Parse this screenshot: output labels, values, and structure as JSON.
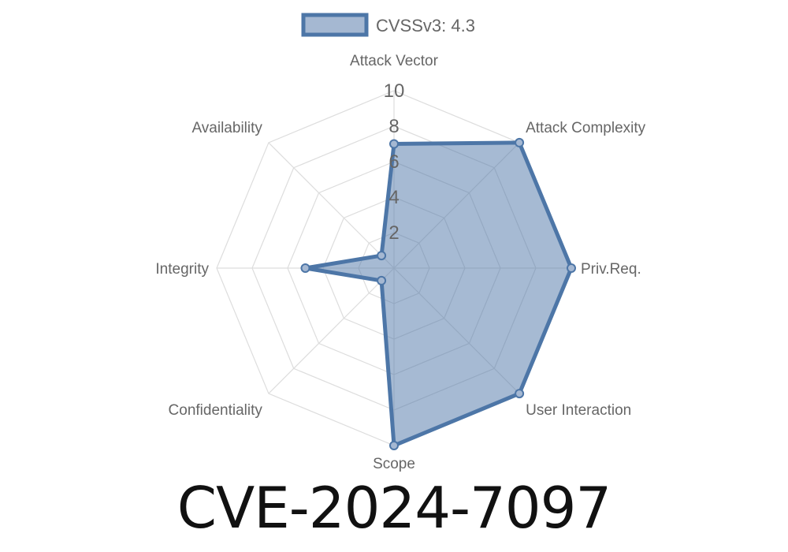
{
  "chart_data": {
    "type": "radar",
    "legend": {
      "label": "CVSSv3: 4.3",
      "placement": "top"
    },
    "axes": [
      "Attack Vector",
      "Attack Complexity",
      "Priv.Req.",
      "User Interaction",
      "Scope",
      "Confidentiality",
      "Integrity",
      "Availability"
    ],
    "series": [
      {
        "name": "CVSSv3: 4.3",
        "values": [
          7,
          10,
          10,
          10,
          10,
          1,
          5,
          1
        ]
      }
    ],
    "rlim": [
      0,
      10
    ],
    "ticks": [
      "2",
      "4",
      "6",
      "8",
      "10"
    ],
    "tick_values": [
      2,
      4,
      6,
      8,
      10
    ],
    "grid": true,
    "colors": {
      "line": "#4d76a7",
      "fill": "#a5b8d2",
      "grid": "#dddddd"
    }
  },
  "title": "CVE-2024-7097"
}
